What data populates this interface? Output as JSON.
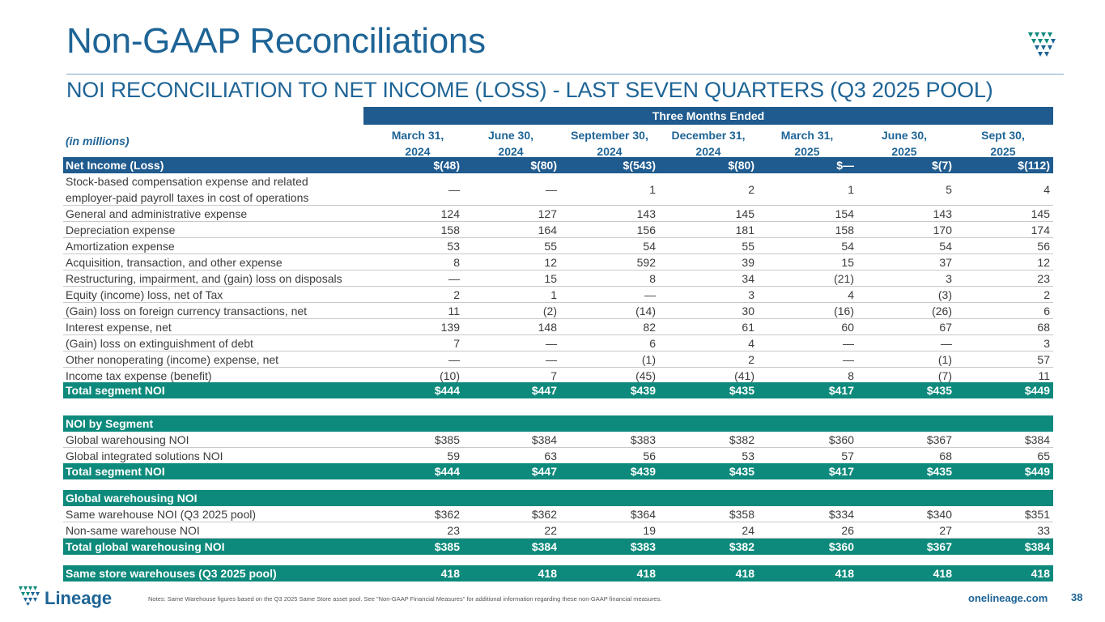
{
  "header": {
    "title": "Non-GAAP Reconciliations",
    "subtitle": "NOI RECONCILIATION TO NET INCOME (LOSS) - LAST SEVEN QUARTERS (Q3 2025 POOL)"
  },
  "table": {
    "group_header": "Three Months Ended",
    "unit_label": "(in millions)",
    "columns": [
      {
        "line1": "March 31,",
        "line2": "2024"
      },
      {
        "line1": "June 30,",
        "line2": "2024"
      },
      {
        "line1": "September 30,",
        "line2": "2024"
      },
      {
        "line1": "December 31,",
        "line2": "2024"
      },
      {
        "line1": "March 31,",
        "line2": "2025"
      },
      {
        "line1": "June 30,",
        "line2": "2025"
      },
      {
        "line1": "Sept 30,",
        "line2": "2025"
      }
    ],
    "rows": [
      {
        "label": "Net Income (Loss)",
        "style": "blue",
        "values": [
          "$(48)",
          "$(80)",
          "$(543)",
          "$(80)",
          "$—",
          "$(7)",
          "$(112)"
        ]
      },
      {
        "label": "Stock-based compensation expense and related",
        "label2": "employer-paid payroll taxes in cost of operations",
        "style": "tall",
        "values": [
          "—",
          "—",
          "1",
          "2",
          "1",
          "5",
          "4"
        ]
      },
      {
        "label": "General and administrative expense",
        "style": "sep",
        "values": [
          "124",
          "127",
          "143",
          "145",
          "154",
          "143",
          "145"
        ]
      },
      {
        "label": "Depreciation expense",
        "style": "sep",
        "values": [
          "158",
          "164",
          "156",
          "181",
          "158",
          "170",
          "174"
        ]
      },
      {
        "label": "Amortization expense",
        "style": "sep",
        "values": [
          "53",
          "55",
          "54",
          "55",
          "54",
          "54",
          "56"
        ]
      },
      {
        "label": "Acquisition, transaction, and other expense",
        "style": "sep",
        "values": [
          "8",
          "12",
          "592",
          "39",
          "15",
          "37",
          "12"
        ]
      },
      {
        "label": "Restructuring, impairment, and (gain) loss on disposals",
        "style": "sep",
        "values": [
          "—",
          "15",
          "8",
          "34",
          "(21)",
          "3",
          "23"
        ]
      },
      {
        "label": "Equity (income) loss, net of Tax",
        "style": "sep",
        "values": [
          "2",
          "1",
          "—",
          "3",
          "4",
          "(3)",
          "2"
        ]
      },
      {
        "label": "(Gain) loss on foreign currency transactions, net",
        "style": "sep",
        "values": [
          "11",
          "(2)",
          "(14)",
          "30",
          "(16)",
          "(26)",
          "6"
        ]
      },
      {
        "label": "Interest expense, net",
        "style": "sep",
        "values": [
          "139",
          "148",
          "82",
          "61",
          "60",
          "67",
          "68"
        ]
      },
      {
        "label": "(Gain) loss on extinguishment of debt",
        "style": "sep",
        "values": [
          "7",
          "—",
          "6",
          "4",
          "—",
          "—",
          "3"
        ]
      },
      {
        "label": "Other nonoperating (income) expense, net",
        "style": "sep",
        "values": [
          "—",
          "—",
          "(1)",
          "2",
          "—",
          "(1)",
          "57"
        ]
      },
      {
        "label": "Income tax expense (benefit)",
        "style": "sep",
        "values": [
          "(10)",
          "7",
          "(45)",
          "(41)",
          "8",
          "(7)",
          "11"
        ]
      },
      {
        "label": "Total segment NOI",
        "style": "teal",
        "values": [
          "$444",
          "$447",
          "$439",
          "$435",
          "$417",
          "$435",
          "$449"
        ]
      },
      {
        "label": "NOI by Segment",
        "style": "teal",
        "values": []
      },
      {
        "label": "Global warehousing NOI",
        "style": "sep",
        "values": [
          "$385",
          "$384",
          "$383",
          "$382",
          "$360",
          "$367",
          "$384"
        ]
      },
      {
        "label": "Global integrated solutions NOI",
        "style": "sep",
        "values": [
          "59",
          "63",
          "56",
          "53",
          "57",
          "68",
          "65"
        ]
      },
      {
        "label": "Total segment NOI",
        "style": "teal",
        "values": [
          "$444",
          "$447",
          "$439",
          "$435",
          "$417",
          "$435",
          "$449"
        ]
      },
      {
        "label": "Global warehousing NOI",
        "style": "teal",
        "values": []
      },
      {
        "label": "Same warehouse NOI (Q3 2025 pool)",
        "style": "sep",
        "values": [
          "$362",
          "$362",
          "$364",
          "$358",
          "$334",
          "$340",
          "$351"
        ]
      },
      {
        "label": "Non-same warehouse NOI",
        "style": "sep",
        "values": [
          "23",
          "22",
          "19",
          "24",
          "26",
          "27",
          "33"
        ]
      },
      {
        "label": "Total global warehousing NOI",
        "style": "teal",
        "values": [
          "$385",
          "$384",
          "$383",
          "$382",
          "$360",
          "$367",
          "$384"
        ]
      },
      {
        "label": "Same store warehouses (Q3 2025 pool)",
        "style": "teal",
        "values": [
          "418",
          "418",
          "418",
          "418",
          "418",
          "418",
          "418"
        ]
      }
    ]
  },
  "footer": {
    "logo_text": "Lineage",
    "notes": "Notes: Same Warehouse figures based on the Q3 2025 Same Store asset pool. See \"Non-GAAP Financial Measures\" for additional information regarding these non-GAAP financial measures.",
    "website": "onelineage.com",
    "page_number": "38"
  },
  "colors": {
    "title_blue": "#1e6496",
    "header_blue": "#1f5b8e",
    "teal": "#0e8a7c"
  }
}
